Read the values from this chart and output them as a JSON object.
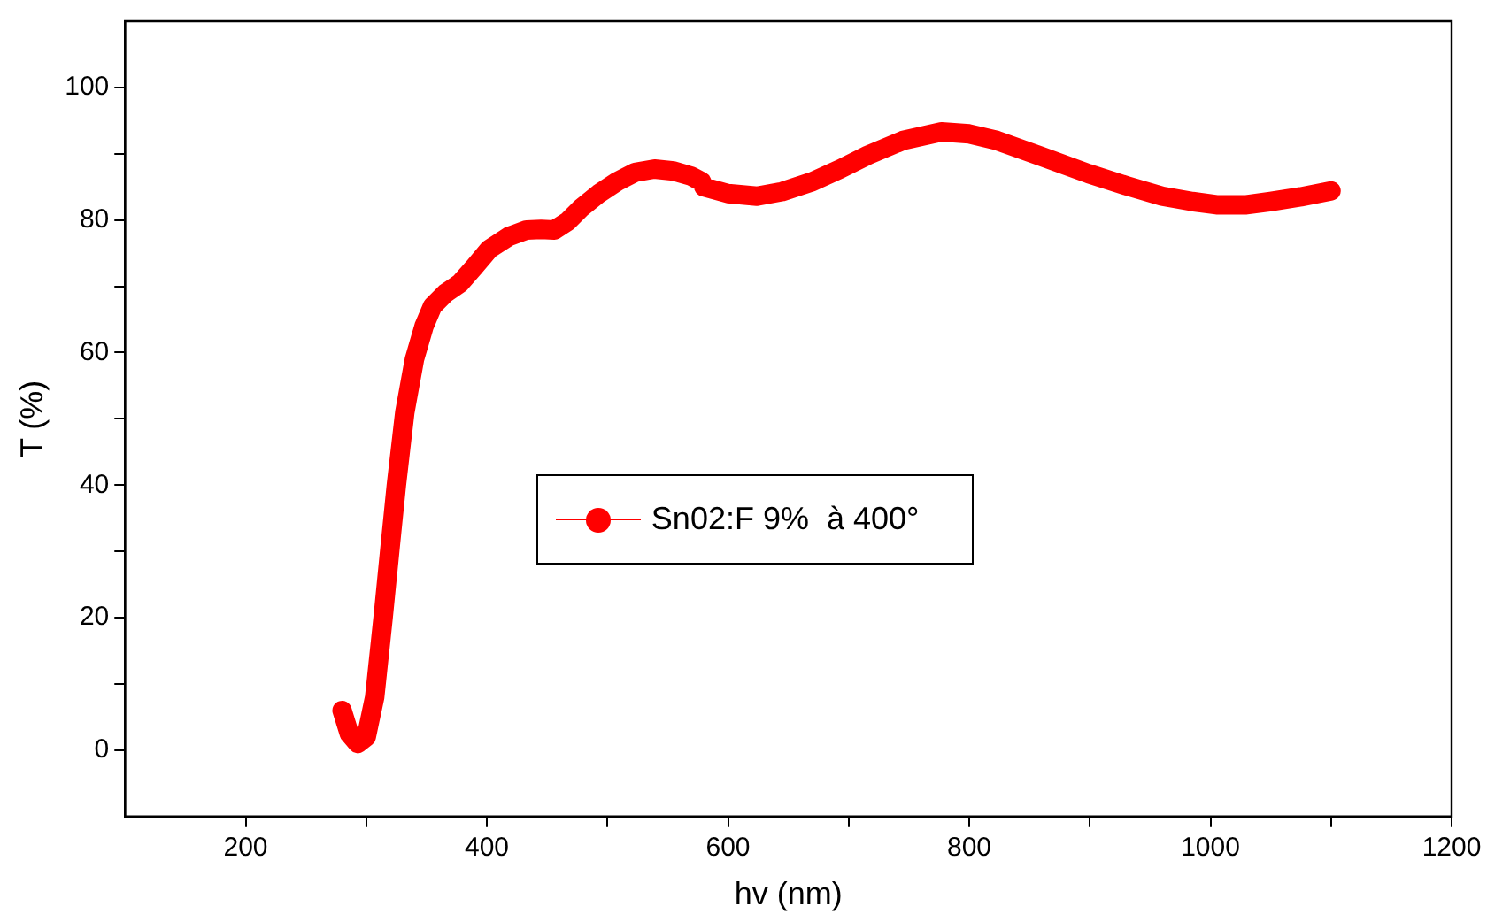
{
  "chart_data": {
    "type": "line",
    "xlabel": "hv (nm)",
    "ylabel": "T (%)",
    "xlim": [
      100,
      1200
    ],
    "ylim": [
      -10,
      110
    ],
    "xticks": [
      200,
      {
        "value": 300,
        "label": null
      },
      400,
      {
        "value": 500,
        "label": null
      },
      600,
      {
        "value": 700,
        "label": null
      },
      800,
      {
        "value": 900,
        "label": null
      },
      1000,
      {
        "value": 1100,
        "label": null
      },
      1200
    ],
    "yticks": [
      0,
      {
        "value": 10,
        "label": null
      },
      20,
      {
        "value": 30,
        "label": null
      },
      40,
      {
        "value": 50,
        "label": null
      },
      60,
      {
        "value": 70,
        "label": null
      },
      80,
      {
        "value": 90,
        "label": null
      },
      100
    ],
    "legend": "center",
    "marker": "circle",
    "line_style": "solid",
    "series": [
      {
        "name": "Sn02:F 9%  à 400°",
        "color": "#ff0000",
        "x": [
          280,
          286,
          293,
          300,
          307,
          314,
          320,
          325,
          332,
          340,
          348,
          355,
          366,
          378,
          390,
          402,
          418,
          433,
          445,
          456,
          467,
          478,
          493,
          508,
          523,
          539,
          555,
          570,
          578,
          580,
          600,
          624,
          645,
          670,
          693,
          716,
          745,
          777,
          800,
          823,
          860,
          899,
          930,
          960,
          985,
          1005,
          1030,
          1050,
          1075,
          1100
        ],
        "values": [
          6,
          2.5,
          1,
          2,
          8,
          20,
          31,
          40,
          51,
          59,
          64,
          67,
          69,
          70.5,
          73,
          75.6,
          77.5,
          78.5,
          78.6,
          78.5,
          79.8,
          81.8,
          84,
          85.8,
          87.2,
          87.7,
          87.4,
          86.6,
          85.8,
          85,
          84,
          83.6,
          84.3,
          85.8,
          87.7,
          89.8,
          92,
          93.3,
          93,
          92,
          89.6,
          87,
          85.2,
          83.6,
          82.8,
          82.3,
          82.3,
          82.8,
          83.5,
          84.4
        ]
      }
    ]
  }
}
